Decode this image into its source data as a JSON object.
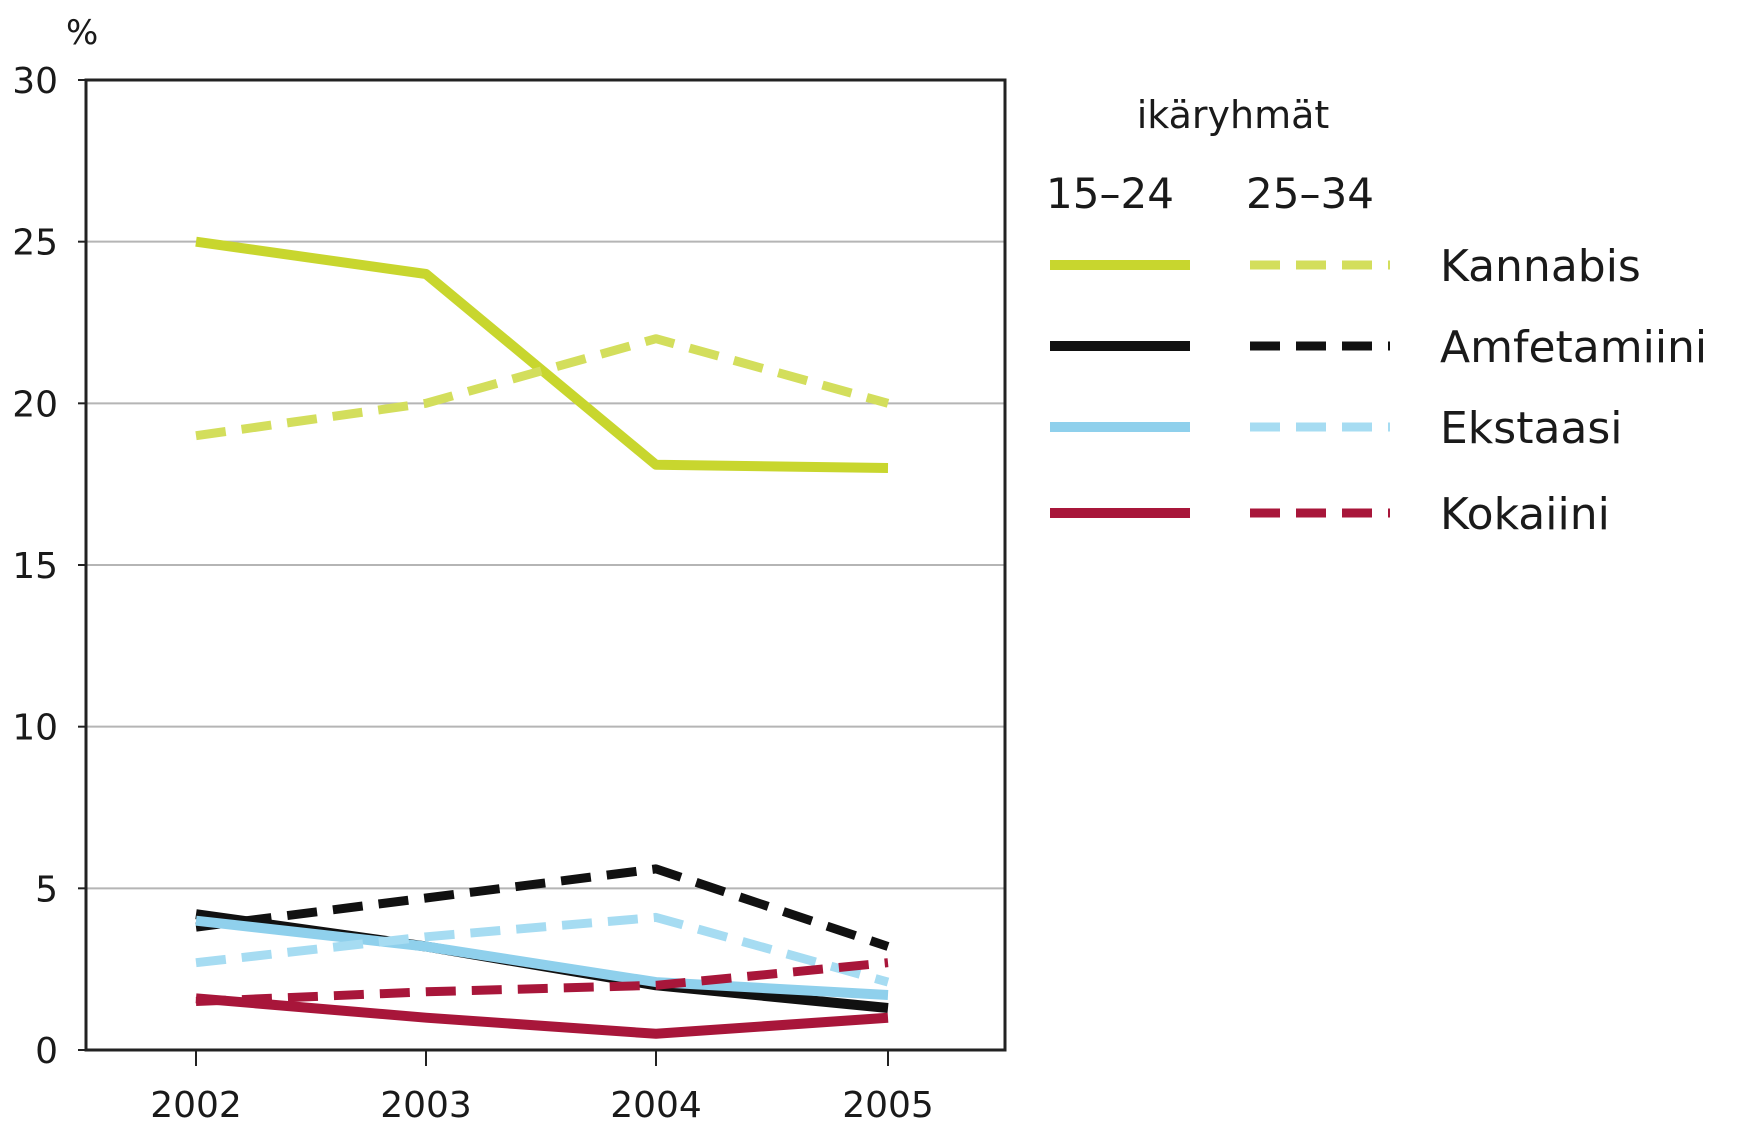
{
  "chart_data": {
    "type": "line",
    "y_unit": "%",
    "x": [
      "2002",
      "2003",
      "2004",
      "2005"
    ],
    "ylim": [
      0,
      30
    ],
    "yticks": [
      "0",
      "5",
      "10",
      "15",
      "20",
      "25",
      "30"
    ],
    "grid": true,
    "legend_position": "right",
    "legend": {
      "title": "ikäryhmät",
      "columns": [
        "15–24",
        "25–34"
      ],
      "rows": [
        "Kannabis",
        "Amfetamiini",
        "Ekstaasi",
        "Kokaiini"
      ]
    },
    "series": [
      {
        "substance": "Kannabis",
        "age_group": "15–24",
        "style": "solid",
        "color": "#c8d62e",
        "values": [
          25,
          24,
          18.1,
          18
        ]
      },
      {
        "substance": "Kannabis",
        "age_group": "25–34",
        "style": "dashed",
        "color": "#d3de5c",
        "values": [
          19,
          20,
          22,
          20
        ]
      },
      {
        "substance": "Amfetamiini",
        "age_group": "15–24",
        "style": "solid",
        "color": "#111111",
        "values": [
          4.2,
          3.2,
          2,
          1.3
        ]
      },
      {
        "substance": "Amfetamiini",
        "age_group": "25–34",
        "style": "dashed",
        "color": "#111111",
        "values": [
          3.8,
          4.7,
          5.6,
          3.2
        ]
      },
      {
        "substance": "Ekstaasi",
        "age_group": "15–24",
        "style": "solid",
        "color": "#8fd0ec",
        "values": [
          4,
          3.2,
          2.1,
          1.7
        ]
      },
      {
        "substance": "Ekstaasi",
        "age_group": "25–34",
        "style": "dashed",
        "color": "#a6dcf2",
        "values": [
          2.7,
          3.5,
          4.1,
          2.1
        ]
      },
      {
        "substance": "Kokaiini",
        "age_group": "15–24",
        "style": "solid",
        "color": "#a8163a",
        "values": [
          1.6,
          1,
          0.5,
          1
        ]
      },
      {
        "substance": "Kokaiini",
        "age_group": "25–34",
        "style": "dashed",
        "color": "#a8163a",
        "values": [
          1.5,
          1.8,
          2,
          2.7
        ]
      }
    ]
  }
}
